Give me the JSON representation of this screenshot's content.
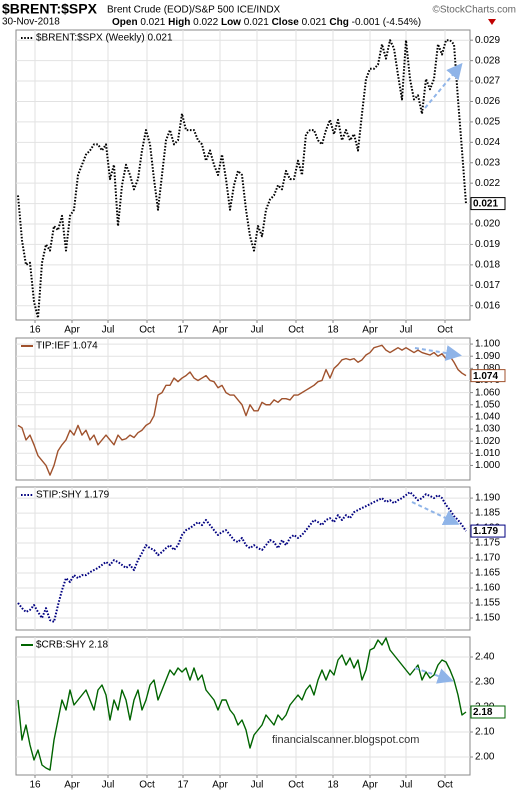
{
  "header": {
    "title": "$BRENT:$SPX",
    "subtitle": "Brent Crude (EOD)/S&P 500 ICE/INDX",
    "date": "30-Nov-2018",
    "source": "©StockCharts.com",
    "stats": [
      {
        "label": "Open",
        "value": 0.021
      },
      {
        "label": "High",
        "value": 0.022
      },
      {
        "label": "Low",
        "value": 0.021
      },
      {
        "label": "Close",
        "value": 0.021
      },
      {
        "label": "Chg",
        "value": "-0.001 (-4.54%)"
      }
    ]
  },
  "chart_data": [
    {
      "type": "line",
      "grid": true,
      "xlim": [
        0,
        112
      ],
      "xticks": [
        {
          "value": 4.25,
          "label": "16"
        },
        {
          "value": 13.5,
          "label": "Apr"
        },
        {
          "value": 22.5,
          "label": "Jul"
        },
        {
          "value": 32.25,
          "label": "Oct"
        },
        {
          "value": 41.25,
          "label": "17"
        },
        {
          "value": 50.5,
          "label": "Apr"
        },
        {
          "value": 59.75,
          "label": "Jul"
        },
        {
          "value": 69.5,
          "label": "Oct"
        },
        {
          "value": 78.75,
          "label": "18"
        },
        {
          "value": 88,
          "label": "Apr"
        },
        {
          "value": 97,
          "label": "Jul"
        },
        {
          "value": 106.75,
          "label": "Oct"
        }
      ],
      "ylim": [
        0.0153,
        0.0295
      ],
      "yticks": [
        0.016,
        0.017,
        0.018,
        0.019,
        {
          "value": 0.02,
          "label": "0.020"
        },
        0.021,
        0.022,
        0.023,
        0.024,
        0.025,
        0.026,
        0.027,
        0.028,
        0.029
      ],
      "series": [
        {
          "name": "$BRENT:$SPX (Weekly) 0.021",
          "color": "#000000",
          "style": "dotted",
          "values": [
            0.0214,
            0.0192,
            0.018,
            0.0181,
            0.0162,
            0.0154,
            0.0181,
            0.019,
            0.0187,
            0.0199,
            0.0197,
            0.0204,
            0.0187,
            0.0204,
            0.0207,
            0.0224,
            0.0229,
            0.0234,
            0.0236,
            0.0239,
            0.0239,
            0.0236,
            0.0239,
            0.0222,
            0.0229,
            0.0199,
            0.0219,
            0.0229,
            0.0224,
            0.0217,
            0.0222,
            0.0236,
            0.0246,
            0.0239,
            0.0222,
            0.0207,
            0.0224,
            0.0241,
            0.0246,
            0.0239,
            0.0241,
            0.0254,
            0.0246,
            0.0246,
            0.0246,
            0.0241,
            0.0239,
            0.0231,
            0.0236,
            0.0229,
            0.0224,
            0.0234,
            0.0222,
            0.0207,
            0.0219,
            0.0226,
            0.0224,
            0.0207,
            0.0194,
            0.0187,
            0.0199,
            0.0194,
            0.0207,
            0.0212,
            0.0214,
            0.0219,
            0.0217,
            0.0226,
            0.0222,
            0.0222,
            0.0231,
            0.0224,
            0.0244,
            0.0246,
            0.0246,
            0.0241,
            0.0239,
            0.0246,
            0.0251,
            0.0244,
            0.0251,
            0.0241,
            0.0246,
            0.0241,
            0.0244,
            0.0236,
            0.0254,
            0.0271,
            0.0276,
            0.0276,
            0.0278,
            0.0288,
            0.0281,
            0.029,
            0.0286,
            0.0273,
            0.0261,
            0.029,
            0.0271,
            0.0261,
            0.0263,
            0.0254,
            0.0271,
            0.0266,
            0.0271,
            0.0288,
            0.0283,
            0.029,
            0.029,
            0.0288,
            0.0261,
            0.0236,
            0.021
          ]
        }
      ]
    },
    {
      "type": "line",
      "grid": true,
      "xlim": [
        0,
        112
      ],
      "ylim": [
        0.988,
        1.105
      ],
      "yticks": [
        {
          "value": 1.1,
          "label": "1.100"
        },
        {
          "value": 1.09,
          "label": "1.090"
        },
        {
          "value": 1.08,
          "label": "1.080"
        },
        {
          "value": 1.07,
          "label": "1.070"
        },
        {
          "value": 1.06,
          "label": "1.060"
        },
        {
          "value": 1.05,
          "label": "1.050"
        },
        {
          "value": 1.04,
          "label": "1.040"
        },
        {
          "value": 1.03,
          "label": "1.030"
        },
        {
          "value": 1.02,
          "label": "1.020"
        },
        {
          "value": 1.01,
          "label": "1.010"
        },
        {
          "value": 1,
          "label": "1.000"
        }
      ],
      "series": [
        {
          "name": "TIP:IEF 1.074",
          "color": "#a0522d",
          "style": "solid",
          "values": [
            1.033,
            1.031,
            1.021,
            1.025,
            1.017,
            1.008,
            1.004,
            1.0,
            0.992,
            1.0,
            1.012,
            1.017,
            1.021,
            1.029,
            1.025,
            1.033,
            1.025,
            1.029,
            1.021,
            1.025,
            1.017,
            1.021,
            1.025,
            1.021,
            1.017,
            1.025,
            1.021,
            1.022,
            1.025,
            1.023,
            1.027,
            1.029,
            1.033,
            1.035,
            1.041,
            1.058,
            1.06,
            1.066,
            1.066,
            1.072,
            1.069,
            1.072,
            1.074,
            1.077,
            1.072,
            1.07,
            1.072,
            1.074,
            1.07,
            1.069,
            1.064,
            1.066,
            1.06,
            1.058,
            1.058,
            1.054,
            1.05,
            1.041,
            1.05,
            1.045,
            1.045,
            1.052,
            1.05,
            1.05,
            1.054,
            1.052,
            1.055,
            1.055,
            1.054,
            1.058,
            1.058,
            1.06,
            1.062,
            1.064,
            1.066,
            1.069,
            1.07,
            1.079,
            1.072,
            1.08,
            1.083,
            1.087,
            1.088,
            1.087,
            1.088,
            1.085,
            1.087,
            1.091,
            1.093,
            1.097,
            1.098,
            1.099,
            1.095,
            1.093,
            1.095,
            1.097,
            1.095,
            1.097,
            1.095,
            1.093,
            1.095,
            1.093,
            1.092,
            1.091,
            1.093,
            1.09,
            1.092,
            1.088,
            1.09,
            1.085,
            1.079,
            1.076,
            1.074
          ]
        }
      ]
    },
    {
      "type": "line",
      "grid": true,
      "xlim": [
        0,
        112
      ],
      "ylim": [
        1.146,
        1.1937
      ],
      "yticks": [
        {
          "value": 1.19,
          "label": "1.190"
        },
        1.185,
        {
          "value": 1.18,
          "label": "1.180"
        },
        1.175,
        {
          "value": 1.17,
          "label": "1.170"
        },
        1.165,
        {
          "value": 1.16,
          "label": "1.160"
        },
        1.155,
        {
          "value": 1.15,
          "label": "1.150"
        }
      ],
      "series": [
        {
          "name": "STIP:SHY 1.179",
          "color": "#000080",
          "style": "dotted",
          "values": [
            1.155,
            1.1533,
            1.152,
            1.1527,
            1.1543,
            1.152,
            1.15,
            1.1533,
            1.1493,
            1.1487,
            1.1543,
            1.1593,
            1.1633,
            1.162,
            1.1643,
            1.1633,
            1.1643,
            1.1643,
            1.1653,
            1.166,
            1.1667,
            1.1677,
            1.1687,
            1.1677,
            1.1693,
            1.1687,
            1.1677,
            1.1667,
            1.1677,
            1.166,
            1.1693,
            1.1717,
            1.1743,
            1.1733,
            1.1727,
            1.171,
            1.172,
            1.1733,
            1.1743,
            1.1727,
            1.1743,
            1.1777,
            1.1793,
            1.18,
            1.181,
            1.182,
            1.181,
            1.1827,
            1.181,
            1.1793,
            1.1777,
            1.1787,
            1.1793,
            1.1777,
            1.176,
            1.1753,
            1.1767,
            1.1743,
            1.1733,
            1.1743,
            1.1733,
            1.1727,
            1.1743,
            1.176,
            1.1753,
            1.1733,
            1.176,
            1.1743,
            1.1767,
            1.1777,
            1.1767,
            1.1777,
            1.1793,
            1.181,
            1.1827,
            1.182,
            1.181,
            1.1827,
            1.1833,
            1.182,
            1.1843,
            1.1827,
            1.1843,
            1.1833,
            1.1853,
            1.186,
            1.1867,
            1.1873,
            1.188,
            1.1887,
            1.1893,
            1.19,
            1.1887,
            1.1893,
            1.1883,
            1.1893,
            1.19,
            1.191,
            1.192,
            1.1907,
            1.1893,
            1.19,
            1.1913,
            1.1907,
            1.19,
            1.191,
            1.19,
            1.1877,
            1.186,
            1.184,
            1.1827,
            1.181,
            1.179
          ]
        }
      ]
    },
    {
      "type": "line",
      "grid": true,
      "xlim": [
        0,
        112
      ],
      "xticks": [
        {
          "value": 4.25,
          "label": "16"
        },
        {
          "value": 13.5,
          "label": "Apr"
        },
        {
          "value": 22.5,
          "label": "Jul"
        },
        {
          "value": 32.25,
          "label": "Oct"
        },
        {
          "value": 41.25,
          "label": "17"
        },
        {
          "value": 50.5,
          "label": "Apr"
        },
        {
          "value": 59.75,
          "label": "Jul"
        },
        {
          "value": 69.5,
          "label": "Oct"
        },
        {
          "value": 78.75,
          "label": "18"
        },
        {
          "value": 88,
          "label": "Apr"
        },
        {
          "value": 97,
          "label": "Jul"
        },
        {
          "value": 106.75,
          "label": "Oct"
        }
      ],
      "ylim": [
        1.928,
        2.48
      ],
      "yticks": [
        {
          "value": 2.4,
          "label": "2.40"
        },
        {
          "value": 2.3,
          "label": "2.30"
        },
        {
          "value": 2.2,
          "label": "2.20"
        },
        {
          "value": 2.1,
          "label": "2.10"
        },
        {
          "value": 2,
          "label": "2.00"
        }
      ],
      "annotation": "financialscanner.blogspot.com",
      "series": [
        {
          "name": "$CRB:SHY 2.18",
          "color": "#006400",
          "style": "solid",
          "values": [
            2.228,
            2.068,
            2.128,
            2.048,
            1.988,
            2.028,
            1.968,
            1.956,
            1.948,
            2.068,
            2.148,
            2.228,
            2.188,
            2.268,
            2.208,
            2.228,
            2.248,
            2.268,
            2.228,
            2.188,
            2.268,
            2.288,
            2.248,
            2.148,
            2.228,
            2.188,
            2.268,
            2.228,
            2.148,
            2.228,
            2.268,
            2.188,
            2.228,
            2.288,
            2.308,
            2.228,
            2.268,
            2.308,
            2.348,
            2.328,
            2.356,
            2.34,
            2.356,
            2.308,
            2.356,
            2.308,
            2.328,
            2.268,
            2.248,
            2.228,
            2.188,
            2.228,
            2.228,
            2.188,
            2.168,
            2.128,
            2.148,
            2.108,
            2.036,
            2.088,
            2.108,
            2.128,
            2.168,
            2.148,
            2.128,
            2.168,
            2.148,
            2.168,
            2.208,
            2.228,
            2.248,
            2.228,
            2.268,
            2.288,
            2.248,
            2.308,
            2.348,
            2.308,
            2.348,
            2.328,
            2.388,
            2.408,
            2.368,
            2.396,
            2.356,
            2.388,
            2.308,
            2.348,
            2.428,
            2.436,
            2.468,
            2.448,
            2.476,
            2.428,
            2.408,
            2.388,
            2.368,
            2.348,
            2.328,
            2.348,
            2.368,
            2.308,
            2.34,
            2.316,
            2.328,
            2.368,
            2.388,
            2.38,
            2.348,
            2.308,
            2.248,
            2.168,
            2.18
          ]
        }
      ]
    }
  ]
}
